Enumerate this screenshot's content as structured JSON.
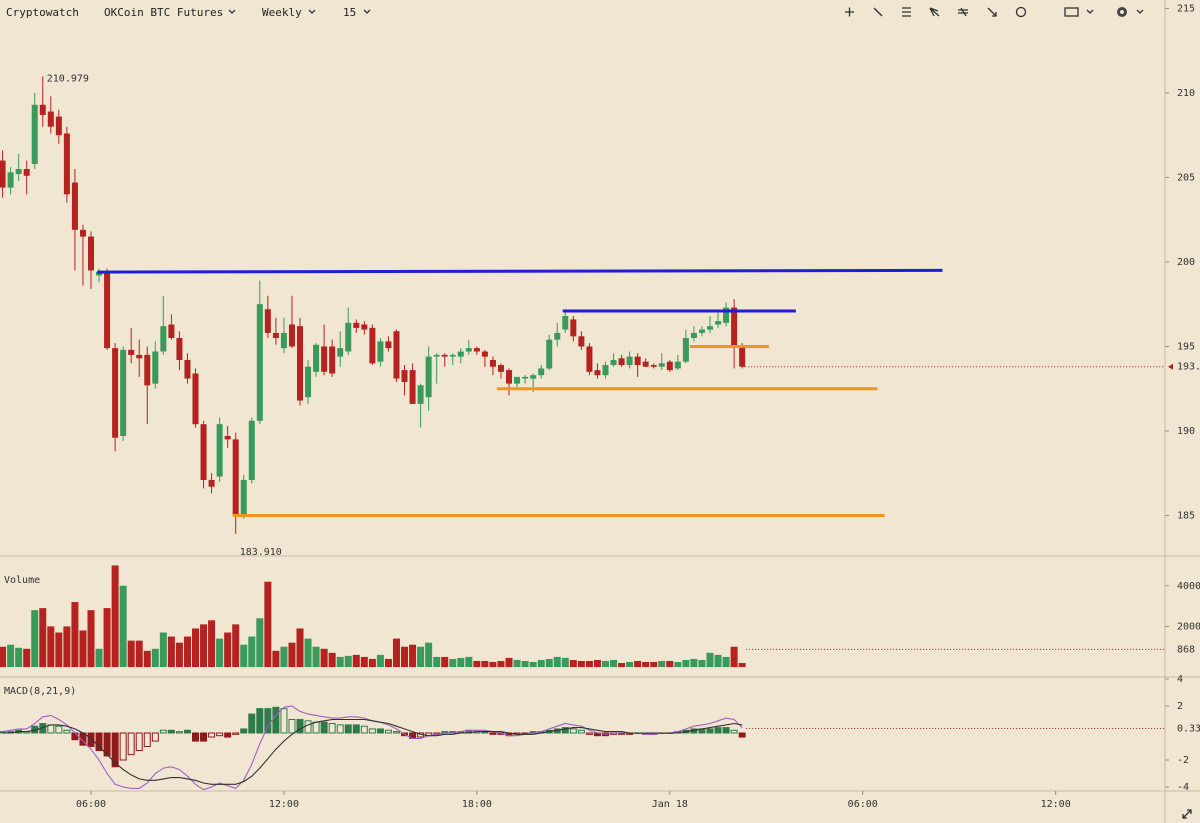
{
  "toolbar": {
    "source": "Cryptowatch",
    "market": "OKCoin BTC Futures",
    "period": "Weekly",
    "interval": "15"
  },
  "chart_data": [
    {
      "type": "candlestick",
      "up_color": "#3a9a5c",
      "down_color": "#b5221f",
      "xlim": [
        3.17,
        39.4
      ],
      "ylim": [
        182.66,
        215.5
      ],
      "xticks": [
        {
          "value": 6,
          "label": "06:00"
        },
        {
          "value": 12,
          "label": "12:00"
        },
        {
          "value": 18,
          "label": "18:00"
        },
        {
          "value": 24,
          "label": "Jan 18"
        },
        {
          "value": 30,
          "label": "06:00"
        },
        {
          "value": 36,
          "label": "12:00"
        }
      ],
      "yticks": [
        215,
        210,
        205,
        200,
        195,
        190,
        185
      ],
      "x": [
        3.25,
        3.5,
        3.75,
        4,
        4.25,
        4.5,
        4.75,
        5,
        5.25,
        5.5,
        5.75,
        6,
        6.25,
        6.5,
        6.75,
        7,
        7.25,
        7.5,
        7.75,
        8,
        8.25,
        8.5,
        8.75,
        9,
        9.25,
        9.5,
        9.75,
        10,
        10.25,
        10.5,
        10.75,
        11,
        11.25,
        11.5,
        11.75,
        12,
        12.25,
        12.5,
        12.75,
        13,
        13.25,
        13.5,
        13.75,
        14,
        14.25,
        14.5,
        14.75,
        15,
        15.25,
        15.5,
        15.75,
        16,
        16.25,
        16.5,
        16.75,
        17,
        17.25,
        17.5,
        17.75,
        18,
        18.25,
        18.5,
        18.75,
        19,
        19.25,
        19.5,
        19.75,
        20,
        20.25,
        20.5,
        20.75,
        21,
        21.25,
        21.5,
        21.75,
        22,
        22.25,
        22.5,
        22.75,
        23,
        23.25,
        23.5,
        23.75,
        24,
        24.25,
        24.5,
        24.75,
        25,
        25.25,
        25.5,
        25.75,
        26,
        26.25
      ],
      "open": [
        206.0,
        204.4,
        205.2,
        205.5,
        205.8,
        209.3,
        208.9,
        208.6,
        207.6,
        204.7,
        201.9,
        201.5,
        199.2,
        199.4,
        194.9,
        189.7,
        194.8,
        194.5,
        194.5,
        192.8,
        194.7,
        196.3,
        195.5,
        194.2,
        193.4,
        190.4,
        187.1,
        187.3,
        189.7,
        189.5,
        185.0,
        187.1,
        190.6,
        197.2,
        195.8,
        194.9,
        196.3,
        196.2,
        192.0,
        193.5,
        195.0,
        195.0,
        194.4,
        194.7,
        196.4,
        196.3,
        196.1,
        194.1,
        195.3,
        195.9,
        193.6,
        193.6,
        191.6,
        192.0,
        194.4,
        194.5,
        194.4,
        194.4,
        194.7,
        194.9,
        194.7,
        194.2,
        193.9,
        193.6,
        192.8,
        193.1,
        193.1,
        193.3,
        193.7,
        195.4,
        196.0,
        196.6,
        195.6,
        195.0,
        193.6,
        193.3,
        193.9,
        194.3,
        193.9,
        194.4,
        194.1,
        193.9,
        193.8,
        194.1,
        193.7,
        194.1,
        195.5,
        195.8,
        196.0,
        196.3,
        196.4,
        197.3,
        195.0
      ],
      "high": [
        206.6,
        205.6,
        206.4,
        206.0,
        210.0,
        210.979,
        209.8,
        209.0,
        208.0,
        205.5,
        202.2,
        201.8,
        199.6,
        199.6,
        195.2,
        195.0,
        196.1,
        195.4,
        195.0,
        195.3,
        198.0,
        196.9,
        195.9,
        194.6,
        193.7,
        190.6,
        187.5,
        190.8,
        190.3,
        189.9,
        187.4,
        190.8,
        198.9,
        198.0,
        196.7,
        196.7,
        198.0,
        196.7,
        194.2,
        195.2,
        196.3,
        195.4,
        195.9,
        197.3,
        196.6,
        196.5,
        196.3,
        195.5,
        195.6,
        196.0,
        193.9,
        194.0,
        192.8,
        195.0,
        194.6,
        194.6,
        194.6,
        194.9,
        195.4,
        195.0,
        194.8,
        194.4,
        194.0,
        193.7,
        193.1,
        193.3,
        193.4,
        193.9,
        195.7,
        196.4,
        197.2,
        196.8,
        195.9,
        195.2,
        194.0,
        194.1,
        194.6,
        194.5,
        194.7,
        194.6,
        194.3,
        194.0,
        194.6,
        194.2,
        194.5,
        196.0,
        196.2,
        196.2,
        196.8,
        197.0,
        197.6,
        197.8,
        195.2
      ],
      "low": [
        203.8,
        204.0,
        204.8,
        204.0,
        205.5,
        208.0,
        207.6,
        207.0,
        203.5,
        199.5,
        198.6,
        198.4,
        198.8,
        194.8,
        188.8,
        189.4,
        194.0,
        193.2,
        190.4,
        192.5,
        194.5,
        195.4,
        193.6,
        192.8,
        190.2,
        186.6,
        186.3,
        187.0,
        189.0,
        183.91,
        184.8,
        186.9,
        190.4,
        195.5,
        195.1,
        194.6,
        194.9,
        191.5,
        191.6,
        193.2,
        193.3,
        193.2,
        193.8,
        194.5,
        195.8,
        195.7,
        193.9,
        193.8,
        194.7,
        192.9,
        192.1,
        191.6,
        190.2,
        191.2,
        192.8,
        193.8,
        193.9,
        194.0,
        194.5,
        194.5,
        193.8,
        193.3,
        193.1,
        192.1,
        192.6,
        192.8,
        192.3,
        193.1,
        193.6,
        195.0,
        195.8,
        195.3,
        194.8,
        193.3,
        193.1,
        193.1,
        193.8,
        193.8,
        193.7,
        193.2,
        193.8,
        193.7,
        193.6,
        193.5,
        193.6,
        194.0,
        195.3,
        195.6,
        195.8,
        196.1,
        196.2,
        193.7,
        193.7
      ],
      "close": [
        204.4,
        205.3,
        205.5,
        205.1,
        209.3,
        208.7,
        208.0,
        207.5,
        204.0,
        201.9,
        201.5,
        199.5,
        199.4,
        194.9,
        189.6,
        194.8,
        194.5,
        194.3,
        192.7,
        194.7,
        196.2,
        195.5,
        194.2,
        193.1,
        190.4,
        187.1,
        186.7,
        190.4,
        189.5,
        185.0,
        187.1,
        190.6,
        197.5,
        195.8,
        195.5,
        195.8,
        195.0,
        191.8,
        193.8,
        195.1,
        193.5,
        193.4,
        194.9,
        196.4,
        196.1,
        196.0,
        194.0,
        195.3,
        194.9,
        193.1,
        192.9,
        191.6,
        192.7,
        194.4,
        194.5,
        194.4,
        194.5,
        194.7,
        194.9,
        194.7,
        194.4,
        193.8,
        193.5,
        192.8,
        193.2,
        193.2,
        193.3,
        193.7,
        195.4,
        195.8,
        196.8,
        195.6,
        195.0,
        193.5,
        193.3,
        193.9,
        194.2,
        193.9,
        194.4,
        193.9,
        193.8,
        193.8,
        194.0,
        193.6,
        194.1,
        195.5,
        195.8,
        196.0,
        196.2,
        196.5,
        197.3,
        195.0,
        193.8
      ],
      "lines": [
        {
          "color": "#1f1fd6",
          "x": [
            6.19,
            32.48
          ],
          "y": [
            199.4,
            199.5
          ]
        },
        {
          "color": "#1f1fd6",
          "x": [
            20.67,
            27.92
          ],
          "y": [
            197.1,
            197.1
          ]
        },
        {
          "color": "#f0961e",
          "x": [
            10.41,
            30.68
          ],
          "y": [
            185.0,
            185.0
          ]
        },
        {
          "color": "#f0961e",
          "x": [
            18.62,
            30.46
          ],
          "y": [
            192.5,
            192.5
          ]
        },
        {
          "color": "#f0961e",
          "x": [
            24.62,
            27.08
          ],
          "y": [
            195.0,
            195.0
          ]
        }
      ],
      "high_label": "210.979",
      "low_label": "183.910",
      "last": {
        "value": 193.8,
        "label": "193."
      }
    },
    {
      "type": "volume",
      "title": "Volume",
      "ylim": [
        -439,
        5415
      ],
      "yticks": [
        4000,
        2000
      ],
      "values": [
        1000,
        1100,
        950,
        900,
        2800,
        2900,
        2000,
        1700,
        2000,
        3200,
        1800,
        2800,
        900,
        2900,
        5000,
        4000,
        1300,
        1300,
        800,
        900,
        1700,
        1500,
        1200,
        1500,
        1900,
        2100,
        2300,
        1400,
        1700,
        2100,
        1100,
        1500,
        2400,
        4200,
        800,
        1000,
        1200,
        1900,
        1400,
        1000,
        900,
        700,
        500,
        550,
        600,
        500,
        400,
        600,
        400,
        1400,
        1000,
        1100,
        1000,
        1200,
        500,
        500,
        400,
        450,
        500,
        300,
        300,
        250,
        300,
        450,
        350,
        300,
        250,
        350,
        400,
        500,
        450,
        350,
        300,
        300,
        350,
        300,
        350,
        200,
        250,
        300,
        250,
        250,
        300,
        300,
        250,
        350,
        400,
        350,
        700,
        600,
        500,
        1000,
        200
      ],
      "last": 868
    },
    {
      "type": "macd",
      "title": "MACD(8,21,9)",
      "ylim": [
        -4.22,
        4.07
      ],
      "yticks": [
        4,
        2,
        -2,
        -4
      ],
      "hist_colors": {
        "up": "#2f7a4a",
        "down": "#8e1b1b"
      },
      "histogram": [
        0.1,
        0.1,
        0.2,
        0.1,
        0.5,
        0.7,
        0.6,
        0.5,
        0.2,
        -0.5,
        -0.9,
        -1.0,
        -1.3,
        -1.7,
        -2.5,
        -2.0,
        -1.6,
        -1.3,
        -1.0,
        -0.6,
        0.2,
        0.2,
        0.1,
        0.2,
        -0.6,
        -0.6,
        -0.3,
        -0.2,
        -0.3,
        -0.1,
        0.3,
        1.4,
        1.8,
        1.8,
        1.9,
        1.8,
        1.0,
        1.0,
        0.9,
        0.8,
        0.8,
        0.7,
        0.6,
        0.6,
        0.6,
        0.5,
        0.3,
        0.3,
        0.2,
        0.1,
        -0.2,
        -0.4,
        -0.3,
        -0.2,
        -0.1,
        0.1,
        0.1,
        0.1,
        0.2,
        0.1,
        0.1,
        -0.1,
        -0.1,
        -0.2,
        -0.1,
        -0.1,
        0.1,
        0.1,
        0.2,
        0.3,
        0.4,
        0.3,
        0.2,
        -0.1,
        -0.2,
        -0.2,
        -0.1,
        -0.1,
        -0.1,
        0.0,
        -0.1,
        -0.1,
        0.0,
        0.0,
        0.1,
        0.2,
        0.3,
        0.3,
        0.3,
        0.4,
        0.4,
        0.2,
        -0.3
      ],
      "series": [
        {
          "color": "#a05fc8",
          "values": [
            0.1,
            0.2,
            0.3,
            0.3,
            0.7,
            1.2,
            1.3,
            1.0,
            0.6,
            0.0,
            -0.6,
            -1.2,
            -2.0,
            -3.0,
            -3.8,
            -4.0,
            -4.1,
            -4.1,
            -3.7,
            -3.0,
            -2.6,
            -2.5,
            -2.7,
            -3.2,
            -3.8,
            -4.2,
            -4.0,
            -3.7,
            -3.9,
            -4.1,
            -3.5,
            -2.3,
            -0.8,
            0.5,
            1.3,
            1.9,
            2.0,
            1.6,
            1.4,
            1.3,
            1.2,
            1.1,
            1.1,
            1.2,
            1.2,
            1.1,
            0.9,
            0.8,
            0.6,
            0.3,
            -0.1,
            -0.4,
            -0.4,
            -0.2,
            -0.1,
            0.0,
            0.0,
            0.1,
            0.2,
            0.2,
            0.2,
            0.1,
            0.0,
            -0.2,
            -0.2,
            -0.1,
            0.0,
            0.1,
            0.3,
            0.5,
            0.7,
            0.6,
            0.5,
            0.2,
            0.0,
            -0.1,
            0.0,
            0.0,
            0.0,
            0.0,
            -0.1,
            -0.1,
            0.0,
            0.0,
            0.1,
            0.3,
            0.5,
            0.6,
            0.7,
            0.9,
            1.1,
            1.0,
            0.4
          ]
        },
        {
          "color": "#333333",
          "values": [
            0.0,
            0.0,
            0.1,
            0.1,
            0.2,
            0.4,
            0.6,
            0.6,
            0.5,
            0.3,
            0.0,
            -0.4,
            -1.0,
            -1.6,
            -2.2,
            -2.7,
            -3.1,
            -3.4,
            -3.5,
            -3.5,
            -3.4,
            -3.3,
            -3.3,
            -3.4,
            -3.5,
            -3.7,
            -3.8,
            -3.8,
            -3.8,
            -3.8,
            -3.6,
            -3.2,
            -2.6,
            -1.9,
            -1.2,
            -0.6,
            -0.1,
            0.3,
            0.6,
            0.8,
            0.9,
            1.0,
            1.0,
            1.0,
            1.0,
            1.0,
            0.9,
            0.8,
            0.7,
            0.5,
            0.3,
            0.1,
            -0.1,
            -0.2,
            -0.2,
            -0.1,
            -0.1,
            0.0,
            0.0,
            0.1,
            0.1,
            0.1,
            0.1,
            0.0,
            -0.1,
            -0.1,
            -0.1,
            0.0,
            0.1,
            0.2,
            0.3,
            0.4,
            0.4,
            0.3,
            0.2,
            0.1,
            0.1,
            0.1,
            0.0,
            0.0,
            0.0,
            0.0,
            0.0,
            0.0,
            0.0,
            0.1,
            0.2,
            0.3,
            0.4,
            0.5,
            0.6,
            0.7,
            0.6
          ]
        }
      ],
      "last": 0.33
    }
  ]
}
